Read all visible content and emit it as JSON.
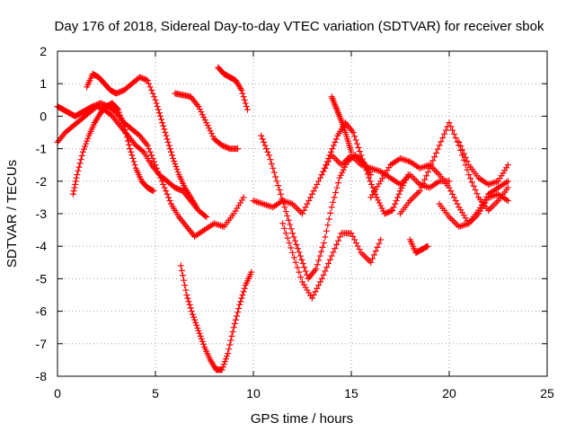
{
  "chart_data": {
    "type": "scatter",
    "title": "Day 176 of 2018, Sidereal Day-to-day VTEC variation (SDTVAR) for receiver sbok",
    "xlabel": "GPS time / hours",
    "ylabel": "SDTVAR / TECUs",
    "xlim": [
      0,
      25
    ],
    "ylim": [
      -8,
      2
    ],
    "xticks": [
      0,
      5,
      10,
      15,
      20,
      25
    ],
    "yticks": [
      -8,
      -7,
      -6,
      -5,
      -4,
      -3,
      -2,
      -1,
      0,
      1,
      2
    ],
    "grid": true,
    "marker": "+",
    "color": "#ff0000",
    "series": [
      {
        "name": "trace-01",
        "x": [
          0.0,
          0.3,
          0.6,
          0.9,
          1.2,
          1.5,
          1.8,
          2.2,
          2.6,
          3.0,
          3.4,
          3.8,
          4.2,
          4.6,
          5.0,
          5.4,
          5.8,
          6.2,
          6.6,
          7.0,
          7.5,
          8.0,
          8.5,
          9.0,
          9.5
        ],
        "y": [
          0.3,
          0.2,
          0.1,
          0.0,
          0.1,
          0.2,
          0.3,
          0.4,
          0.3,
          0.1,
          -0.2,
          -0.4,
          -0.6,
          -0.9,
          -1.5,
          -2.1,
          -2.7,
          -3.1,
          -3.4,
          -3.7,
          -3.5,
          -3.3,
          -3.4,
          -3.0,
          -2.5
        ]
      },
      {
        "name": "trace-02",
        "x": [
          0.0,
          0.4,
          0.8,
          1.2,
          1.6,
          2.0,
          2.4,
          2.8,
          3.2,
          3.6,
          4.0,
          4.4,
          4.8,
          5.2,
          5.6,
          6.0,
          6.4,
          6.8,
          7.2,
          7.6
        ],
        "y": [
          -0.8,
          -0.5,
          -0.3,
          -0.1,
          0.1,
          0.3,
          0.2,
          0.0,
          -0.3,
          -0.6,
          -0.9,
          -1.1,
          -1.5,
          -1.8,
          -2.0,
          -2.2,
          -2.3,
          -2.6,
          -2.9,
          -3.1
        ]
      },
      {
        "name": "trace-03",
        "x": [
          0.8,
          1.0,
          1.3,
          1.6,
          1.9,
          2.2,
          2.5,
          2.8,
          3.1,
          3.4,
          3.7,
          4.0,
          4.3,
          4.6,
          4.9
        ],
        "y": [
          -2.4,
          -1.8,
          -1.1,
          -0.6,
          -0.2,
          0.1,
          0.3,
          0.4,
          0.2,
          -0.3,
          -1.0,
          -1.6,
          -2.0,
          -2.2,
          -2.3
        ]
      },
      {
        "name": "trace-04",
        "x": [
          1.5,
          1.8,
          2.1,
          2.4,
          2.7,
          3.0,
          3.4,
          3.8,
          4.2,
          4.6,
          5.0,
          5.3,
          5.6,
          5.9,
          6.2,
          6.5,
          6.8,
          7.1
        ],
        "y": [
          0.9,
          1.3,
          1.2,
          1.0,
          0.8,
          0.7,
          0.8,
          1.0,
          1.2,
          1.1,
          0.5,
          -0.1,
          -0.7,
          -1.3,
          -1.8,
          -2.2,
          -2.5,
          -2.8
        ]
      },
      {
        "name": "trace-05",
        "x": [
          6.0,
          6.4,
          6.8,
          7.2,
          7.6,
          8.0,
          8.4,
          8.8,
          9.2
        ],
        "y": [
          0.7,
          0.65,
          0.6,
          0.3,
          -0.2,
          -0.7,
          -0.9,
          -1.0,
          -1.0
        ]
      },
      {
        "name": "trace-06",
        "x": [
          8.2,
          8.5,
          8.8,
          9.1,
          9.4,
          9.7
        ],
        "y": [
          1.5,
          1.3,
          1.2,
          1.1,
          0.8,
          0.2
        ]
      },
      {
        "name": "trace-07",
        "x": [
          6.3,
          6.6,
          6.9,
          7.2,
          7.5,
          7.8,
          8.1,
          8.4,
          8.7,
          9.0,
          9.3,
          9.6,
          9.9
        ],
        "y": [
          -4.6,
          -5.5,
          -6.1,
          -6.6,
          -7.1,
          -7.5,
          -7.8,
          -7.8,
          -7.3,
          -6.5,
          -5.8,
          -5.2,
          -4.8
        ]
      },
      {
        "name": "trace-08",
        "x": [
          10.0,
          10.5,
          11.0,
          11.5,
          12.0,
          12.5,
          13.0,
          13.5,
          14.0,
          14.5,
          15.0,
          15.5,
          16.0,
          16.5,
          17.0,
          17.5,
          18.0,
          18.5,
          19.0,
          19.5,
          20.0
        ],
        "y": [
          -2.6,
          -2.7,
          -2.8,
          -2.6,
          -2.7,
          -3.0,
          -2.4,
          -1.8,
          -1.2,
          -1.5,
          -1.2,
          -1.5,
          -1.6,
          -1.7,
          -1.9,
          -2.1,
          -1.8,
          -2.1,
          -2.2,
          -2.0,
          -2.0
        ]
      },
      {
        "name": "trace-09",
        "x": [
          10.4,
          10.8,
          11.2,
          11.6,
          12.0,
          12.4,
          12.8,
          13.2,
          13.6,
          14.0,
          14.4,
          14.8,
          15.2,
          15.6,
          16.0
        ],
        "y": [
          -0.6,
          -1.2,
          -2.0,
          -2.8,
          -3.6,
          -4.3,
          -5.0,
          -4.7,
          -3.9,
          -2.8,
          -1.9,
          -1.4,
          -1.2,
          -1.4,
          -1.8
        ]
      },
      {
        "name": "trace-10",
        "x": [
          11.5,
          12.0,
          12.5,
          13.0,
          13.5,
          14.0,
          14.5,
          15.0,
          15.5,
          16.0,
          16.5
        ],
        "y": [
          -3.3,
          -4.2,
          -5.1,
          -5.6,
          -5.0,
          -4.3,
          -3.6,
          -3.6,
          -4.2,
          -4.5,
          -3.8
        ]
      },
      {
        "name": "trace-11",
        "x": [
          13.5,
          13.9,
          14.3,
          14.7,
          15.1,
          15.5,
          15.9,
          16.3,
          16.7,
          17.1,
          17.5,
          17.9
        ],
        "y": [
          -1.8,
          -1.2,
          -0.6,
          -0.2,
          -0.5,
          -1.2,
          -1.9,
          -2.5,
          -3.0,
          -2.9,
          -2.3,
          -1.8
        ]
      },
      {
        "name": "trace-12",
        "x": [
          14.0,
          14.2,
          14.4,
          14.6,
          14.8,
          15.0
        ],
        "y": [
          0.6,
          0.3,
          0.0,
          -0.3,
          -0.7,
          -1.1
        ]
      },
      {
        "name": "trace-13",
        "x": [
          16.0,
          16.5,
          17.0,
          17.5,
          18.0,
          18.5,
          19.0,
          19.5,
          20.0,
          20.5,
          21.0,
          21.5,
          22.0,
          22.5,
          23.0
        ],
        "y": [
          -2.5,
          -2.0,
          -1.5,
          -1.3,
          -1.4,
          -1.6,
          -1.5,
          -1.8,
          -2.2,
          -2.8,
          -3.3,
          -3.0,
          -2.5,
          -2.4,
          -2.6
        ]
      },
      {
        "name": "trace-14",
        "x": [
          17.5,
          18.0,
          18.5,
          19.0,
          19.5,
          20.0,
          20.5,
          21.0,
          21.5,
          22.0,
          22.5,
          23.0
        ],
        "y": [
          -3.0,
          -2.6,
          -2.3,
          -1.6,
          -0.9,
          -0.2,
          -0.9,
          -1.8,
          -2.5,
          -2.9,
          -2.6,
          -2.2
        ]
      },
      {
        "name": "trace-15",
        "x": [
          18.0,
          18.3,
          18.6,
          18.9
        ],
        "y": [
          -3.8,
          -4.2,
          -4.1,
          -4.0
        ]
      },
      {
        "name": "trace-16",
        "x": [
          19.5,
          20.0,
          20.5,
          21.0,
          21.5,
          22.0,
          22.5,
          23.0
        ],
        "y": [
          -2.7,
          -3.1,
          -3.4,
          -3.3,
          -2.9,
          -2.4,
          -2.2,
          -2.0
        ]
      },
      {
        "name": "trace-17",
        "x": [
          20.5,
          21.0,
          21.5,
          22.0,
          22.5,
          23.0
        ],
        "y": [
          -0.8,
          -1.5,
          -1.9,
          -2.1,
          -2.0,
          -1.5
        ]
      }
    ]
  }
}
